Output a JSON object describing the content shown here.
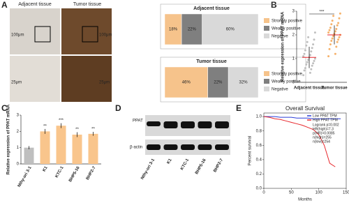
{
  "panels": [
    "A",
    "B",
    "C",
    "D",
    "E"
  ],
  "images": {
    "labels": [
      "Adjacent tissue",
      "Tumor tissue"
    ],
    "scale_top": "100μm",
    "scale_bottom": "25μm"
  },
  "blot": {
    "rows": [
      "PPAT",
      "β-actin"
    ],
    "lanes": [
      "Nthy-ori 3-1",
      "K1",
      "KTC-1",
      "BHP5-16",
      "BHP2-7"
    ]
  },
  "chart_data": [
    {
      "type": "stacked-bar",
      "title": "Adjacent tissue",
      "series": [
        {
          "name": "Strongly positive",
          "color": "#f6c38b",
          "values": [
            18
          ],
          "value_labels": [
            "18%"
          ]
        },
        {
          "name": "Weakly positive",
          "color": "#7f7f7f",
          "values": [
            22
          ],
          "value_labels": [
            "22%"
          ]
        },
        {
          "name": "Negative",
          "color": "#d9d9d9",
          "values": [
            60
          ],
          "value_labels": [
            "60%"
          ]
        }
      ]
    },
    {
      "type": "stacked-bar",
      "title": "Tumor tissue",
      "series": [
        {
          "name": "Strongly positive",
          "color": "#f6c38b",
          "values": [
            46
          ],
          "value_labels": [
            "46%"
          ]
        },
        {
          "name": "Weakly positive",
          "color": "#7f7f7f",
          "values": [
            22
          ],
          "value_labels": [
            "22%"
          ]
        },
        {
          "name": "Negative",
          "color": "#d9d9d9",
          "values": [
            32
          ],
          "value_labels": [
            "32%"
          ]
        }
      ]
    },
    {
      "type": "dot-strip",
      "ylabel": "Relative expression of PPAT mRNA",
      "categories": [
        "Adjacent tissue",
        "Tumor tissue"
      ],
      "colors": [
        "#bfbfbf",
        "#f6b26b"
      ],
      "ylim": [
        0,
        3
      ],
      "yticks": [
        0,
        1,
        2,
        3
      ],
      "annotation": "***",
      "means": [
        1.05,
        2.0
      ],
      "errors": [
        0.45,
        0.4
      ],
      "values": [
        [
          0.3,
          0.4,
          0.5,
          0.55,
          0.6,
          0.7,
          0.75,
          0.8,
          0.85,
          0.9,
          0.95,
          1.0,
          1.05,
          1.1,
          1.15,
          1.2,
          1.3,
          1.35,
          1.45,
          1.55,
          1.6,
          1.7,
          1.8,
          1.9,
          2.1
        ],
        [
          1.1,
          1.2,
          1.4,
          1.5,
          1.6,
          1.7,
          1.75,
          1.8,
          1.85,
          1.9,
          1.95,
          2.0,
          2.05,
          2.1,
          2.15,
          2.2,
          2.25,
          2.3,
          2.4,
          2.45,
          2.5,
          2.6,
          2.7,
          2.8,
          2.9
        ]
      ]
    },
    {
      "type": "bar",
      "ylabel": "Relative expression of PPAT mRNA",
      "categories": [
        "Nthy-ori 3-1",
        "K1",
        "KTC-1",
        "BHP5-16",
        "BHP2-7"
      ],
      "values": [
        1.0,
        2.0,
        2.35,
        1.8,
        1.85
      ],
      "errors": [
        0.1,
        0.15,
        0.15,
        0.15,
        0.12
      ],
      "colors": [
        "#bfbfbf",
        "#f9c58c",
        "#f9c58c",
        "#f9c58c",
        "#f9c58c"
      ],
      "annotations": [
        null,
        "**",
        "***",
        "**",
        "**"
      ],
      "ylim": [
        0,
        3
      ],
      "yticks": [
        0,
        1,
        2,
        3
      ]
    },
    {
      "type": "line",
      "title": "Overall Survival",
      "xlabel": "Months",
      "ylabel": "Percent survival",
      "x": [
        0,
        10,
        20,
        30,
        40,
        50,
        60,
        70,
        80,
        90,
        100,
        110,
        120,
        130,
        140,
        150
      ],
      "series": [
        {
          "name": "Low PPAT TPM",
          "color": "#2b3cd8",
          "values": [
            1,
            1,
            1,
            0.99,
            0.99,
            0.99,
            0.98,
            0.98,
            0.98,
            0.97,
            0.97,
            0.97,
            0.97,
            0.97,
            0.97,
            null
          ]
        },
        {
          "name": "High PPAT TPM",
          "color": "#e8262b",
          "values": [
            1,
            0.99,
            0.97,
            0.96,
            0.94,
            0.92,
            0.9,
            0.88,
            0.85,
            0.82,
            0.75,
            0.6,
            0.35,
            0.3,
            null,
            null
          ]
        }
      ],
      "notes": [
        "Logrank p=0.002",
        "HR(high)=7.3",
        "p(HR)=0.0085",
        "n(high)=255",
        "n(low)=254"
      ],
      "xlim": [
        0,
        150
      ],
      "xticks": [
        0,
        50,
        100,
        150
      ],
      "ylim": [
        0,
        1.05
      ],
      "yticks": [
        {
          "value": 0,
          "label": "0.0"
        },
        {
          "value": 0.2,
          "label": "0.2"
        },
        {
          "value": 0.4,
          "label": "0.4"
        },
        {
          "value": 0.6,
          "label": "0.6"
        },
        {
          "value": 0.8,
          "label": "0.8"
        },
        {
          "value": 1,
          "label": "1.0"
        }
      ]
    }
  ]
}
